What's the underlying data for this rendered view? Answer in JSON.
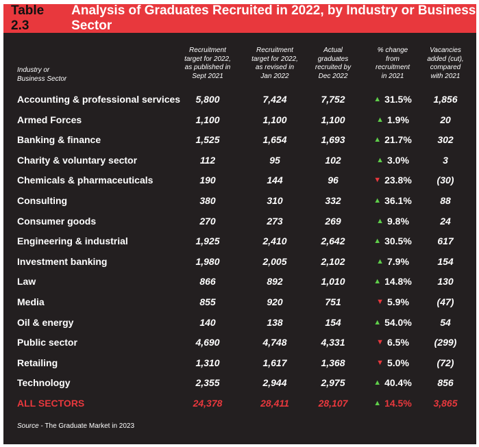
{
  "title": {
    "number": "Table 2.3",
    "text": "Analysis of Graduates Recruited in 2022, by Industry or Business Sector"
  },
  "headers": {
    "sector": [
      "Industry or",
      "Business Sector"
    ],
    "col1": [
      "Recruitment",
      "target for 2022,",
      "as published in",
      "Sept 2021"
    ],
    "col2": [
      "Recruitment",
      "target for 2022,",
      "as revised in",
      "Jan 2022"
    ],
    "col3": [
      "Actual",
      "graduates",
      "recruited by",
      "Dec 2022"
    ],
    "col4": [
      "% change",
      "from",
      "recruitment",
      "in 2021"
    ],
    "col5": [
      "Vacancies",
      "added (cut),",
      "compared",
      "with 2021"
    ]
  },
  "rows": [
    {
      "sector": "Accounting & professional services",
      "target_sept": "5,800",
      "target_jan": "7,424",
      "actual": "7,752",
      "direction": "up",
      "change": "31.5%",
      "vacancies": "1,856"
    },
    {
      "sector": "Armed Forces",
      "target_sept": "1,100",
      "target_jan": "1,100",
      "actual": "1,100",
      "direction": "up",
      "change": "1.9%",
      "vacancies": "20"
    },
    {
      "sector": "Banking & finance",
      "target_sept": "1,525",
      "target_jan": "1,654",
      "actual": "1,693",
      "direction": "up",
      "change": "21.7%",
      "vacancies": "302"
    },
    {
      "sector": "Charity & voluntary sector",
      "target_sept": "112",
      "target_jan": "95",
      "actual": "102",
      "direction": "up",
      "change": "3.0%",
      "vacancies": "3"
    },
    {
      "sector": "Chemicals & pharmaceuticals",
      "target_sept": "190",
      "target_jan": "144",
      "actual": "96",
      "direction": "down",
      "change": "23.8%",
      "vacancies": "(30)"
    },
    {
      "sector": "Consulting",
      "target_sept": "380",
      "target_jan": "310",
      "actual": "332",
      "direction": "up",
      "change": "36.1%",
      "vacancies": "88"
    },
    {
      "sector": "Consumer goods",
      "target_sept": "270",
      "target_jan": "273",
      "actual": "269",
      "direction": "up",
      "change": "9.8%",
      "vacancies": "24"
    },
    {
      "sector": "Engineering & industrial",
      "target_sept": "1,925",
      "target_jan": "2,410",
      "actual": "2,642",
      "direction": "up",
      "change": "30.5%",
      "vacancies": "617"
    },
    {
      "sector": "Investment banking",
      "target_sept": "1,980",
      "target_jan": "2,005",
      "actual": "2,102",
      "direction": "up",
      "change": "7.9%",
      "vacancies": "154"
    },
    {
      "sector": "Law",
      "target_sept": "866",
      "target_jan": "892",
      "actual": "1,010",
      "direction": "up",
      "change": "14.8%",
      "vacancies": "130"
    },
    {
      "sector": "Media",
      "target_sept": "855",
      "target_jan": "920",
      "actual": "751",
      "direction": "down",
      "change": "5.9%",
      "vacancies": "(47)"
    },
    {
      "sector": "Oil & energy",
      "target_sept": "140",
      "target_jan": "138",
      "actual": "154",
      "direction": "up",
      "change": "54.0%",
      "vacancies": "54"
    },
    {
      "sector": "Public sector",
      "target_sept": "4,690",
      "target_jan": "4,748",
      "actual": "4,331",
      "direction": "down",
      "change": "6.5%",
      "vacancies": "(299)"
    },
    {
      "sector": "Retailing",
      "target_sept": "1,310",
      "target_jan": "1,617",
      "actual": "1,368",
      "direction": "down",
      "change": "5.0%",
      "vacancies": "(72)"
    },
    {
      "sector": "Technology",
      "target_sept": "2,355",
      "target_jan": "2,944",
      "actual": "2,975",
      "direction": "up",
      "change": "40.4%",
      "vacancies": "856"
    }
  ],
  "total": {
    "sector": "ALL SECTORS",
    "target_sept": "24,378",
    "target_jan": "28,411",
    "actual": "28,107",
    "direction": "up",
    "change": "14.5%",
    "vacancies": "3,865"
  },
  "source": {
    "label": "Source",
    "text": " - The Graduate Market in 2023"
  },
  "colors": {
    "background": "#231f20",
    "title_bar": "#e8383d",
    "up_arrow": "#5fcf4a",
    "down_arrow": "#e8383d",
    "total_text": "#e8383d"
  },
  "icons": {
    "up": "triangle-up-icon",
    "down": "triangle-down-icon"
  }
}
